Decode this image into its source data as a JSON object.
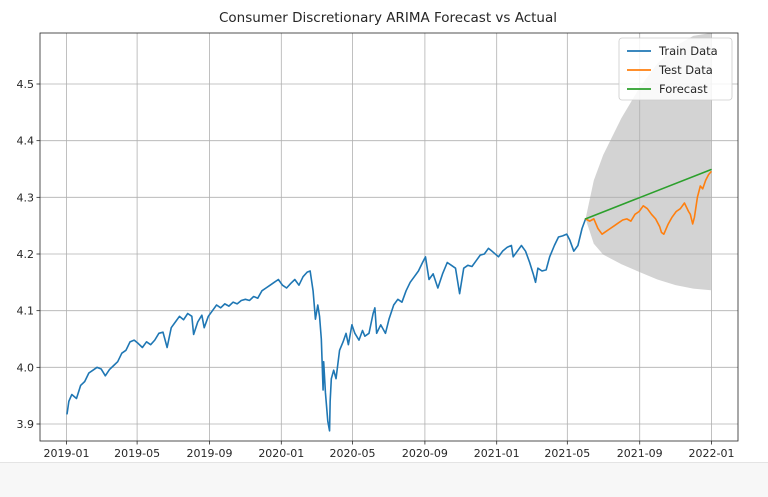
{
  "chart_data": {
    "type": "line",
    "title": "Consumer Discretionary ARIMA Forecast vs Actual",
    "xlabel": "",
    "ylabel": "",
    "x_ticks": [
      "2019-01",
      "2019-05",
      "2019-09",
      "2020-01",
      "2020-05",
      "2020-09",
      "2021-01",
      "2021-05",
      "2021-09",
      "2022-01"
    ],
    "y_ticks": [
      "3.9",
      "4.0",
      "4.1",
      "4.2",
      "4.3",
      "4.4",
      "4.5"
    ],
    "xlim": [
      "2018-11-17",
      "2022-02-15"
    ],
    "ylim": [
      3.87,
      4.59
    ],
    "grid": true,
    "legend_position": "top-right",
    "confidence_band": {
      "color": "#d3d3d3",
      "x": [
        "2021-06-01",
        "2021-06-15",
        "2021-07-01",
        "2021-08-01",
        "2021-09-01",
        "2021-10-01",
        "2021-11-01",
        "2021-12-01",
        "2021-12-31"
      ],
      "upper": [
        4.262,
        4.33,
        4.375,
        4.44,
        4.494,
        4.536,
        4.567,
        4.585,
        4.59
      ],
      "lower": [
        4.262,
        4.218,
        4.199,
        4.182,
        4.168,
        4.155,
        4.145,
        4.139,
        4.136
      ]
    },
    "series": [
      {
        "name": "Train Data",
        "color": "#1f77b4",
        "points": [
          [
            "2019-01-02",
            3.918
          ],
          [
            "2019-01-05",
            3.94
          ],
          [
            "2019-01-10",
            3.952
          ],
          [
            "2019-01-18",
            3.945
          ],
          [
            "2019-01-25",
            3.968
          ],
          [
            "2019-02-01",
            3.975
          ],
          [
            "2019-02-08",
            3.99
          ],
          [
            "2019-02-15",
            3.995
          ],
          [
            "2019-02-22",
            4.0
          ],
          [
            "2019-03-01",
            3.997
          ],
          [
            "2019-03-08",
            3.985
          ],
          [
            "2019-03-15",
            3.996
          ],
          [
            "2019-03-22",
            4.003
          ],
          [
            "2019-03-29",
            4.01
          ],
          [
            "2019-04-05",
            4.025
          ],
          [
            "2019-04-12",
            4.03
          ],
          [
            "2019-04-19",
            4.045
          ],
          [
            "2019-04-26",
            4.048
          ],
          [
            "2019-05-03",
            4.042
          ],
          [
            "2019-05-10",
            4.035
          ],
          [
            "2019-05-17",
            4.045
          ],
          [
            "2019-05-24",
            4.04
          ],
          [
            "2019-05-31",
            4.048
          ],
          [
            "2019-06-07",
            4.06
          ],
          [
            "2019-06-14",
            4.062
          ],
          [
            "2019-06-21",
            4.035
          ],
          [
            "2019-06-28",
            4.07
          ],
          [
            "2019-07-05",
            4.08
          ],
          [
            "2019-07-12",
            4.09
          ],
          [
            "2019-07-19",
            4.084
          ],
          [
            "2019-07-26",
            4.095
          ],
          [
            "2019-08-02",
            4.09
          ],
          [
            "2019-08-05",
            4.058
          ],
          [
            "2019-08-12",
            4.08
          ],
          [
            "2019-08-19",
            4.092
          ],
          [
            "2019-08-23",
            4.07
          ],
          [
            "2019-08-30",
            4.09
          ],
          [
            "2019-09-06",
            4.1
          ],
          [
            "2019-09-13",
            4.11
          ],
          [
            "2019-09-20",
            4.105
          ],
          [
            "2019-09-27",
            4.112
          ],
          [
            "2019-10-04",
            4.108
          ],
          [
            "2019-10-11",
            4.115
          ],
          [
            "2019-10-18",
            4.112
          ],
          [
            "2019-10-25",
            4.118
          ],
          [
            "2019-11-01",
            4.12
          ],
          [
            "2019-11-08",
            4.118
          ],
          [
            "2019-11-15",
            4.125
          ],
          [
            "2019-11-22",
            4.122
          ],
          [
            "2019-11-29",
            4.135
          ],
          [
            "2019-12-06",
            4.14
          ],
          [
            "2019-12-13",
            4.145
          ],
          [
            "2019-12-20",
            4.15
          ],
          [
            "2019-12-27",
            4.155
          ],
          [
            "2020-01-03",
            4.145
          ],
          [
            "2020-01-10",
            4.14
          ],
          [
            "2020-01-17",
            4.148
          ],
          [
            "2020-01-24",
            4.155
          ],
          [
            "2020-01-31",
            4.145
          ],
          [
            "2020-02-07",
            4.16
          ],
          [
            "2020-02-14",
            4.168
          ],
          [
            "2020-02-19",
            4.17
          ],
          [
            "2020-02-24",
            4.135
          ],
          [
            "2020-02-28",
            4.085
          ],
          [
            "2020-03-03",
            4.11
          ],
          [
            "2020-03-06",
            4.09
          ],
          [
            "2020-03-09",
            4.05
          ],
          [
            "2020-03-12",
            3.96
          ],
          [
            "2020-03-13",
            4.01
          ],
          [
            "2020-03-16",
            3.955
          ],
          [
            "2020-03-18",
            3.93
          ],
          [
            "2020-03-20",
            3.905
          ],
          [
            "2020-03-23",
            3.888
          ],
          [
            "2020-03-24",
            3.94
          ],
          [
            "2020-03-26",
            3.98
          ],
          [
            "2020-03-30",
            3.995
          ],
          [
            "2020-04-03",
            3.98
          ],
          [
            "2020-04-09",
            4.03
          ],
          [
            "2020-04-15",
            4.045
          ],
          [
            "2020-04-20",
            4.06
          ],
          [
            "2020-04-24",
            4.04
          ],
          [
            "2020-04-30",
            4.075
          ],
          [
            "2020-05-05",
            4.06
          ],
          [
            "2020-05-12",
            4.048
          ],
          [
            "2020-05-18",
            4.065
          ],
          [
            "2020-05-22",
            4.055
          ],
          [
            "2020-05-29",
            4.06
          ],
          [
            "2020-06-05",
            4.095
          ],
          [
            "2020-06-08",
            4.105
          ],
          [
            "2020-06-11",
            4.06
          ],
          [
            "2020-06-18",
            4.075
          ],
          [
            "2020-06-26",
            4.06
          ],
          [
            "2020-07-02",
            4.085
          ],
          [
            "2020-07-10",
            4.11
          ],
          [
            "2020-07-17",
            4.12
          ],
          [
            "2020-07-24",
            4.115
          ],
          [
            "2020-07-31",
            4.135
          ],
          [
            "2020-08-07",
            4.15
          ],
          [
            "2020-08-14",
            4.16
          ],
          [
            "2020-08-21",
            4.17
          ],
          [
            "2020-08-28",
            4.185
          ],
          [
            "2020-09-02",
            4.195
          ],
          [
            "2020-09-08",
            4.155
          ],
          [
            "2020-09-15",
            4.165
          ],
          [
            "2020-09-23",
            4.14
          ],
          [
            "2020-10-01",
            4.165
          ],
          [
            "2020-10-09",
            4.185
          ],
          [
            "2020-10-16",
            4.18
          ],
          [
            "2020-10-23",
            4.175
          ],
          [
            "2020-10-30",
            4.13
          ],
          [
            "2020-11-06",
            4.175
          ],
          [
            "2020-11-13",
            4.18
          ],
          [
            "2020-11-20",
            4.178
          ],
          [
            "2020-11-27",
            4.188
          ],
          [
            "2020-12-04",
            4.198
          ],
          [
            "2020-12-11",
            4.2
          ],
          [
            "2020-12-18",
            4.21
          ],
          [
            "2020-12-24",
            4.205
          ],
          [
            "2021-01-04",
            4.195
          ],
          [
            "2021-01-11",
            4.205
          ],
          [
            "2021-01-19",
            4.212
          ],
          [
            "2021-01-26",
            4.215
          ],
          [
            "2021-01-29",
            4.195
          ],
          [
            "2021-02-05",
            4.205
          ],
          [
            "2021-02-12",
            4.215
          ],
          [
            "2021-02-19",
            4.205
          ],
          [
            "2021-02-26",
            4.185
          ],
          [
            "2021-03-04",
            4.165
          ],
          [
            "2021-03-08",
            4.15
          ],
          [
            "2021-03-12",
            4.175
          ],
          [
            "2021-03-19",
            4.17
          ],
          [
            "2021-03-26",
            4.172
          ],
          [
            "2021-04-01",
            4.195
          ],
          [
            "2021-04-09",
            4.215
          ],
          [
            "2021-04-16",
            4.23
          ],
          [
            "2021-04-23",
            4.232
          ],
          [
            "2021-04-30",
            4.235
          ],
          [
            "2021-05-05",
            4.225
          ],
          [
            "2021-05-12",
            4.205
          ],
          [
            "2021-05-19",
            4.215
          ],
          [
            "2021-05-26",
            4.245
          ],
          [
            "2021-06-01",
            4.262
          ]
        ]
      },
      {
        "name": "Test Data",
        "color": "#ff7f0e",
        "points": [
          [
            "2021-06-01",
            4.262
          ],
          [
            "2021-06-08",
            4.258
          ],
          [
            "2021-06-15",
            4.262
          ],
          [
            "2021-06-22",
            4.245
          ],
          [
            "2021-06-29",
            4.235
          ],
          [
            "2021-07-06",
            4.24
          ],
          [
            "2021-07-13",
            4.245
          ],
          [
            "2021-07-20",
            4.25
          ],
          [
            "2021-07-27",
            4.255
          ],
          [
            "2021-08-03",
            4.26
          ],
          [
            "2021-08-10",
            4.262
          ],
          [
            "2021-08-17",
            4.258
          ],
          [
            "2021-08-24",
            4.27
          ],
          [
            "2021-08-31",
            4.275
          ],
          [
            "2021-09-07",
            4.285
          ],
          [
            "2021-09-14",
            4.28
          ],
          [
            "2021-09-21",
            4.27
          ],
          [
            "2021-09-28",
            4.262
          ],
          [
            "2021-10-05",
            4.248
          ],
          [
            "2021-10-08",
            4.238
          ],
          [
            "2021-10-12",
            4.235
          ],
          [
            "2021-10-19",
            4.252
          ],
          [
            "2021-10-26",
            4.265
          ],
          [
            "2021-11-02",
            4.275
          ],
          [
            "2021-11-09",
            4.28
          ],
          [
            "2021-11-16",
            4.29
          ],
          [
            "2021-11-23",
            4.275
          ],
          [
            "2021-11-26",
            4.27
          ],
          [
            "2021-11-30",
            4.253
          ],
          [
            "2021-12-03",
            4.265
          ],
          [
            "2021-12-08",
            4.3
          ],
          [
            "2021-12-13",
            4.32
          ],
          [
            "2021-12-17",
            4.315
          ],
          [
            "2021-12-22",
            4.33
          ],
          [
            "2021-12-27",
            4.34
          ],
          [
            "2021-12-31",
            4.345
          ]
        ]
      },
      {
        "name": "Forecast",
        "color": "#2ca02c",
        "points": [
          [
            "2021-06-01",
            4.262
          ],
          [
            "2021-12-31",
            4.349
          ]
        ]
      }
    ]
  }
}
